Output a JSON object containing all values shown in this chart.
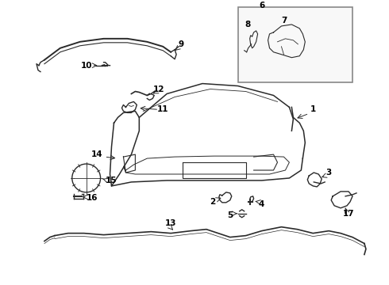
{
  "bg_color": "#ffffff",
  "line_color": "#2a2a2a",
  "label_color": "#000000",
  "lw": 1.0,
  "figsize": [
    4.9,
    3.6
  ],
  "dpi": 100
}
